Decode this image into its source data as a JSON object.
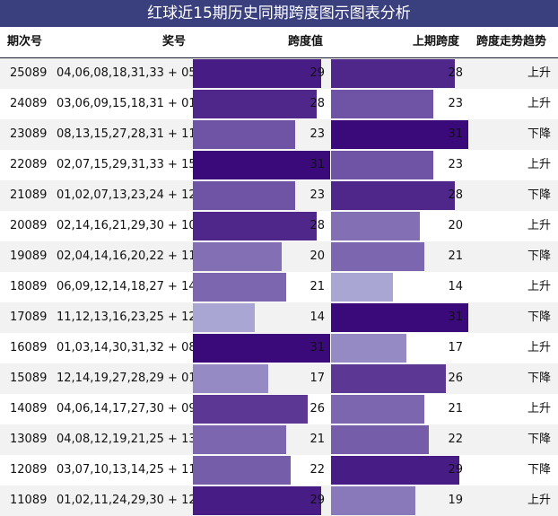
{
  "title": "红球近15期历史同期跨度图示图表分析",
  "headers": {
    "period": "期次号",
    "numbers": "奖号",
    "span": "跨度值",
    "prev_span": "上期跨度",
    "trend": "跨度走势趋势"
  },
  "colors": {
    "title_bg": "#3a3f7e",
    "bar_max": "#3b0a7a",
    "bar_min": "#aaa6d4"
  },
  "chart_data": {
    "type": "table",
    "span_range": [
      14,
      31
    ],
    "rows": [
      {
        "period": "25089",
        "numbers": "04,06,08,18,31,33 + 05",
        "span": 29,
        "prev_span": 28,
        "trend": "上升"
      },
      {
        "period": "24089",
        "numbers": "03,06,09,15,18,31 + 01",
        "span": 28,
        "prev_span": 23,
        "trend": "上升"
      },
      {
        "period": "23089",
        "numbers": "08,13,15,27,28,31 + 11",
        "span": 23,
        "prev_span": 31,
        "trend": "下降"
      },
      {
        "period": "22089",
        "numbers": "02,07,15,29,31,33 + 15",
        "span": 31,
        "prev_span": 23,
        "trend": "上升"
      },
      {
        "period": "21089",
        "numbers": "01,02,07,13,23,24 + 12",
        "span": 23,
        "prev_span": 28,
        "trend": "下降"
      },
      {
        "period": "20089",
        "numbers": "02,14,16,21,29,30 + 10",
        "span": 28,
        "prev_span": 20,
        "trend": "上升"
      },
      {
        "period": "19089",
        "numbers": "02,04,14,16,20,22 + 11",
        "span": 20,
        "prev_span": 21,
        "trend": "下降"
      },
      {
        "period": "18089",
        "numbers": "06,09,12,14,18,27 + 14",
        "span": 21,
        "prev_span": 14,
        "trend": "上升"
      },
      {
        "period": "17089",
        "numbers": "11,12,13,16,23,25 + 12",
        "span": 14,
        "prev_span": 31,
        "trend": "下降"
      },
      {
        "period": "16089",
        "numbers": "01,03,14,30,31,32 + 08",
        "span": 31,
        "prev_span": 17,
        "trend": "上升"
      },
      {
        "period": "15089",
        "numbers": "12,14,19,27,28,29 + 01",
        "span": 17,
        "prev_span": 26,
        "trend": "下降"
      },
      {
        "period": "14089",
        "numbers": "04,06,14,17,27,30 + 09",
        "span": 26,
        "prev_span": 21,
        "trend": "上升"
      },
      {
        "period": "13089",
        "numbers": "04,08,12,19,21,25 + 13",
        "span": 21,
        "prev_span": 22,
        "trend": "下降"
      },
      {
        "period": "12089",
        "numbers": "03,07,10,13,14,25 + 11",
        "span": 22,
        "prev_span": 29,
        "trend": "下降"
      },
      {
        "period": "11089",
        "numbers": "01,02,11,24,29,30 + 12",
        "span": 29,
        "prev_span": 19,
        "trend": "上升"
      }
    ]
  }
}
